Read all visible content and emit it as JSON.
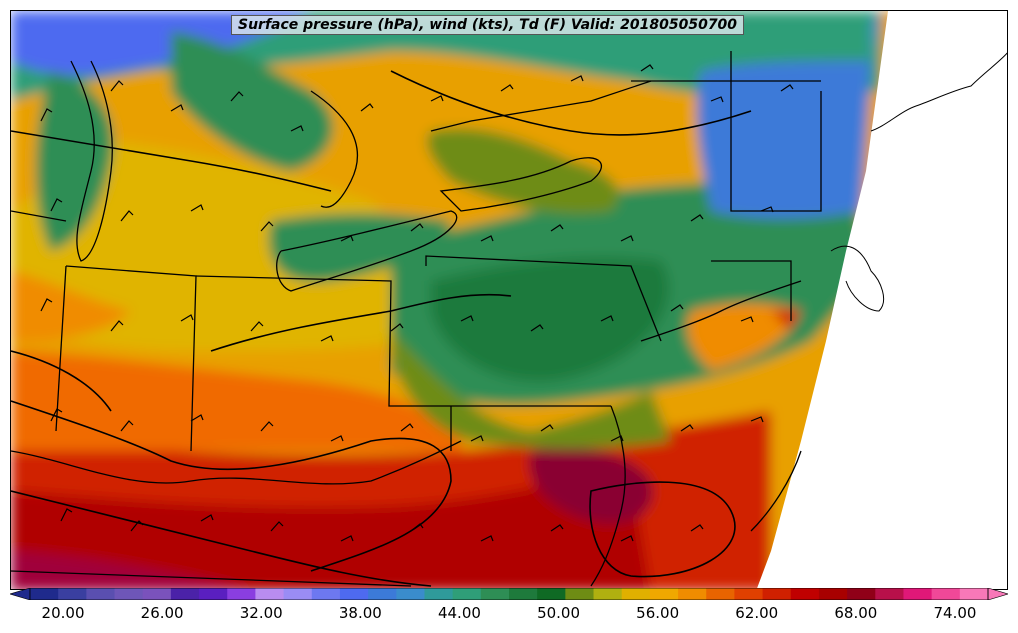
{
  "title": "Surface pressure (hPa), wind (kts), Td (F) Valid: 201805050700",
  "colorbar": {
    "tick_labels": [
      "20.00",
      "26.00",
      "32.00",
      "38.00",
      "44.00",
      "50.00",
      "56.00",
      "62.00",
      "68.00",
      "74.00"
    ],
    "colors": [
      "#1f2a8c",
      "#3a3fa0",
      "#5a4fb0",
      "#6e56b8",
      "#7a52bc",
      "#4b22a8",
      "#5a1fc0",
      "#8a3ee0",
      "#b98cf0",
      "#9a8cf5",
      "#6d78f0",
      "#4e6af0",
      "#3c7ad8",
      "#3a8ccc",
      "#2f9a9a",
      "#2f9e78",
      "#2e8e55",
      "#1e7a3c",
      "#0f6a24",
      "#6e8c14",
      "#b0b010",
      "#e0b000",
      "#f0a800",
      "#f08c00",
      "#e86400",
      "#e04000",
      "#d02000",
      "#c00000",
      "#a80000",
      "#900018",
      "#b8104a",
      "#e01878",
      "#f04898",
      "#f878b8"
    ],
    "min": 18,
    "max": 76
  }
}
